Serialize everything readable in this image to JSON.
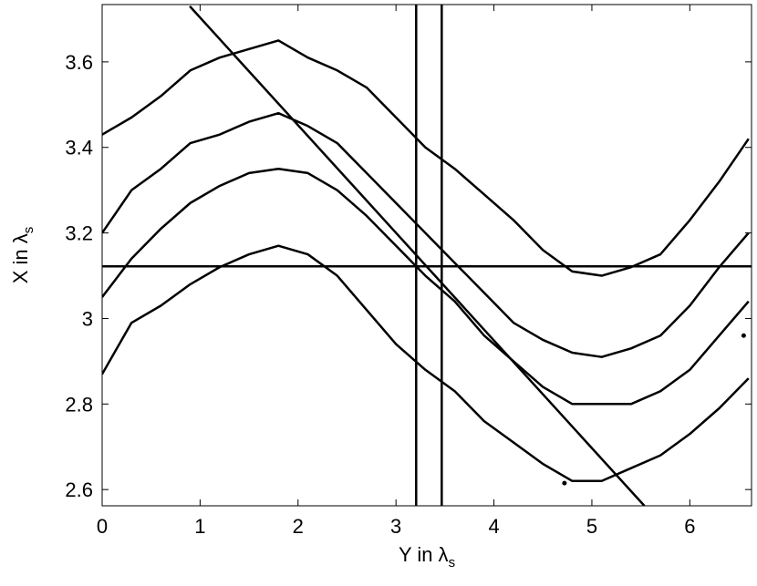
{
  "chart_data": {
    "type": "line",
    "xlabel": {
      "text": "Y in λ",
      "subscript": "s"
    },
    "ylabel": {
      "text": "X in λ",
      "subscript": "s"
    },
    "x": [
      0,
      0.3,
      0.6,
      0.9,
      1.2,
      1.5,
      1.8,
      2.1,
      2.4,
      2.7,
      3.0,
      3.3,
      3.6,
      3.9,
      4.2,
      4.5,
      4.8,
      5.1,
      5.4,
      5.7,
      6.0,
      6.3,
      6.6
    ],
    "series": [
      {
        "color": "#000000",
        "values": [
          3.43,
          3.47,
          3.52,
          3.58,
          3.61,
          3.63,
          3.65,
          3.61,
          3.58,
          3.54,
          3.47,
          3.4,
          3.35,
          3.29,
          3.23,
          3.16,
          3.11,
          3.1,
          3.12,
          3.15,
          3.23,
          3.32,
          3.42
        ]
      },
      {
        "color": "#000000",
        "values": [
          3.2,
          3.3,
          3.35,
          3.41,
          3.43,
          3.46,
          3.48,
          3.45,
          3.41,
          3.34,
          3.27,
          3.2,
          3.13,
          3.06,
          2.99,
          2.95,
          2.92,
          2.91,
          2.93,
          2.96,
          3.03,
          3.12,
          3.2
        ]
      },
      {
        "color": "#000000",
        "values": [
          3.05,
          3.14,
          3.21,
          3.27,
          3.31,
          3.34,
          3.35,
          3.34,
          3.3,
          3.24,
          3.17,
          3.1,
          3.04,
          2.96,
          2.9,
          2.84,
          2.8,
          2.8,
          2.8,
          2.83,
          2.88,
          2.96,
          3.04
        ]
      },
      {
        "color": "#000000",
        "values": [
          2.87,
          2.99,
          3.03,
          3.08,
          3.12,
          3.15,
          3.17,
          3.15,
          3.1,
          3.02,
          2.94,
          2.88,
          2.83,
          2.76,
          2.71,
          2.66,
          2.62,
          2.62,
          2.65,
          2.68,
          2.73,
          2.79,
          2.86
        ]
      }
    ],
    "diagonal": {
      "x": [
        0.895,
        5.536
      ],
      "values": [
        3.73,
        2.562
      ]
    },
    "hlines": [
      3.122
    ],
    "vlines": [
      3.206,
      3.467
    ],
    "markers": {
      "x": [
        4.72,
        6.55
      ],
      "values": [
        2.615,
        2.96
      ]
    },
    "xlim": [
      0,
      6.63
    ],
    "ylim": [
      2.562,
      3.734
    ],
    "xticks": [
      0,
      1,
      2,
      3,
      4,
      5,
      6
    ],
    "yticks": [
      2.6,
      2.8,
      3,
      3.2,
      3.4,
      3.6
    ]
  }
}
